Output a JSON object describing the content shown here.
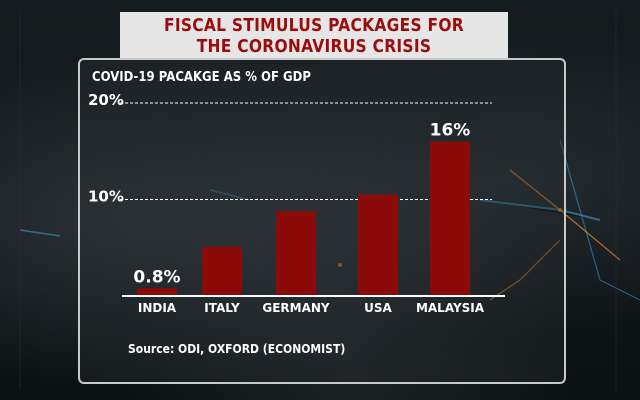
{
  "title": {
    "line1": "FISCAL STIMULUS PACKAGES FOR",
    "line2": "THE CORONAVIRUS CRISIS"
  },
  "source": "Source: ODI, OXFORD (ECONOMIST)",
  "colors": {
    "bar": "#8b0a0a",
    "title_text": "#9b0d0d",
    "title_bg": "#e6e6e6",
    "text": "#ffffff"
  },
  "chart_data": {
    "type": "bar",
    "title": "COVID-19 PACAKGE AS % OF GDP",
    "categories": [
      "INDIA",
      "ITALY",
      "GERMANY",
      "USA",
      "MALAYSIA"
    ],
    "values": [
      0.8,
      5.1,
      8.8,
      10.5,
      16
    ],
    "data_labels": [
      "0.8%",
      "",
      "",
      "",
      "16%"
    ],
    "y_ticks": [
      10,
      20
    ],
    "y_tick_labels": [
      "10%",
      "20%"
    ],
    "ylim": [
      0,
      20
    ],
    "grid": "dashed at 10% and 20%",
    "legend": "none"
  }
}
